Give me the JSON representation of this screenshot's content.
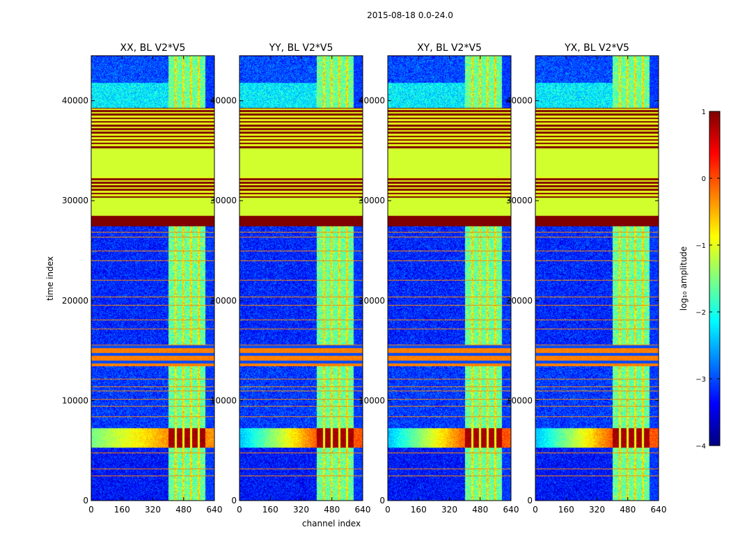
{
  "chart_data": {
    "type": "heatmap",
    "suptitle": "2015-08-18 0.0-24.0",
    "xlabel": "channel index",
    "ylabel": "time index",
    "xlim": [
      0,
      640
    ],
    "ylim": [
      0,
      44500
    ],
    "xticks": [
      0,
      160,
      320,
      480,
      640
    ],
    "yticks": [
      0,
      10000,
      20000,
      30000,
      40000
    ],
    "colorbar": {
      "label": "log₁₀ amplitude",
      "range": [
        -4,
        1
      ],
      "ticks": [
        -4,
        -3,
        -2,
        -1,
        0,
        1
      ],
      "tick_labels": [
        "−4",
        "−3",
        "−2",
        "−1",
        "0",
        "1"
      ],
      "colormap": [
        "#00007f",
        "#0000ff",
        "#007fff",
        "#00ffff",
        "#7fff7f",
        "#ffff00",
        "#ff7f00",
        "#ff0000",
        "#7f0000"
      ]
    },
    "panels": [
      {
        "title": "XX, BL V2*V5",
        "pol": "XX"
      },
      {
        "title": "YY, BL V2*V5",
        "pol": "YY"
      },
      {
        "title": "XY, BL V2*V5",
        "pol": "XY"
      },
      {
        "title": "YX, BL V2*V5",
        "pol": "YX"
      }
    ],
    "background_level": -3.3,
    "bright_channel_range": [
      400,
      590
    ],
    "bright_level": -1.6,
    "gap_channels": [
      438,
      478,
      518,
      558
    ],
    "regions": [
      {
        "t0": 0,
        "t1": 5300,
        "kind": "noise",
        "level": -3.3
      },
      {
        "t0": 5300,
        "t1": 7300,
        "kind": "strong",
        "level": 0.8
      },
      {
        "t0": 7300,
        "t1": 13500,
        "kind": "noise",
        "level": -3.1
      },
      {
        "t0": 13500,
        "t1": 15600,
        "kind": "orange",
        "level": -0.3
      },
      {
        "t0": 15600,
        "t1": 27500,
        "kind": "noise",
        "level": -3.2
      },
      {
        "t0": 27500,
        "t1": 28500,
        "kind": "flag",
        "level": 1.0
      },
      {
        "t0": 28500,
        "t1": 30300,
        "kind": "flat",
        "level": -1.1
      },
      {
        "t0": 30300,
        "t1": 32400,
        "kind": "stripes",
        "level": 1.0
      },
      {
        "t0": 32400,
        "t1": 35300,
        "kind": "flat",
        "level": -1.1
      },
      {
        "t0": 35300,
        "t1": 39300,
        "kind": "stripes",
        "level": 1.0
      },
      {
        "t0": 39300,
        "t1": 41800,
        "kind": "noise",
        "level": -2.2
      },
      {
        "t0": 41800,
        "t1": 44500,
        "kind": "noise",
        "level": -3.0
      }
    ],
    "flag_lines": [
      2500,
      3200,
      4800,
      8400,
      9500,
      10200,
      11000,
      11400,
      12200,
      17200,
      18100,
      19600,
      20400,
      22100,
      24000,
      25000,
      26400,
      26900
    ]
  }
}
